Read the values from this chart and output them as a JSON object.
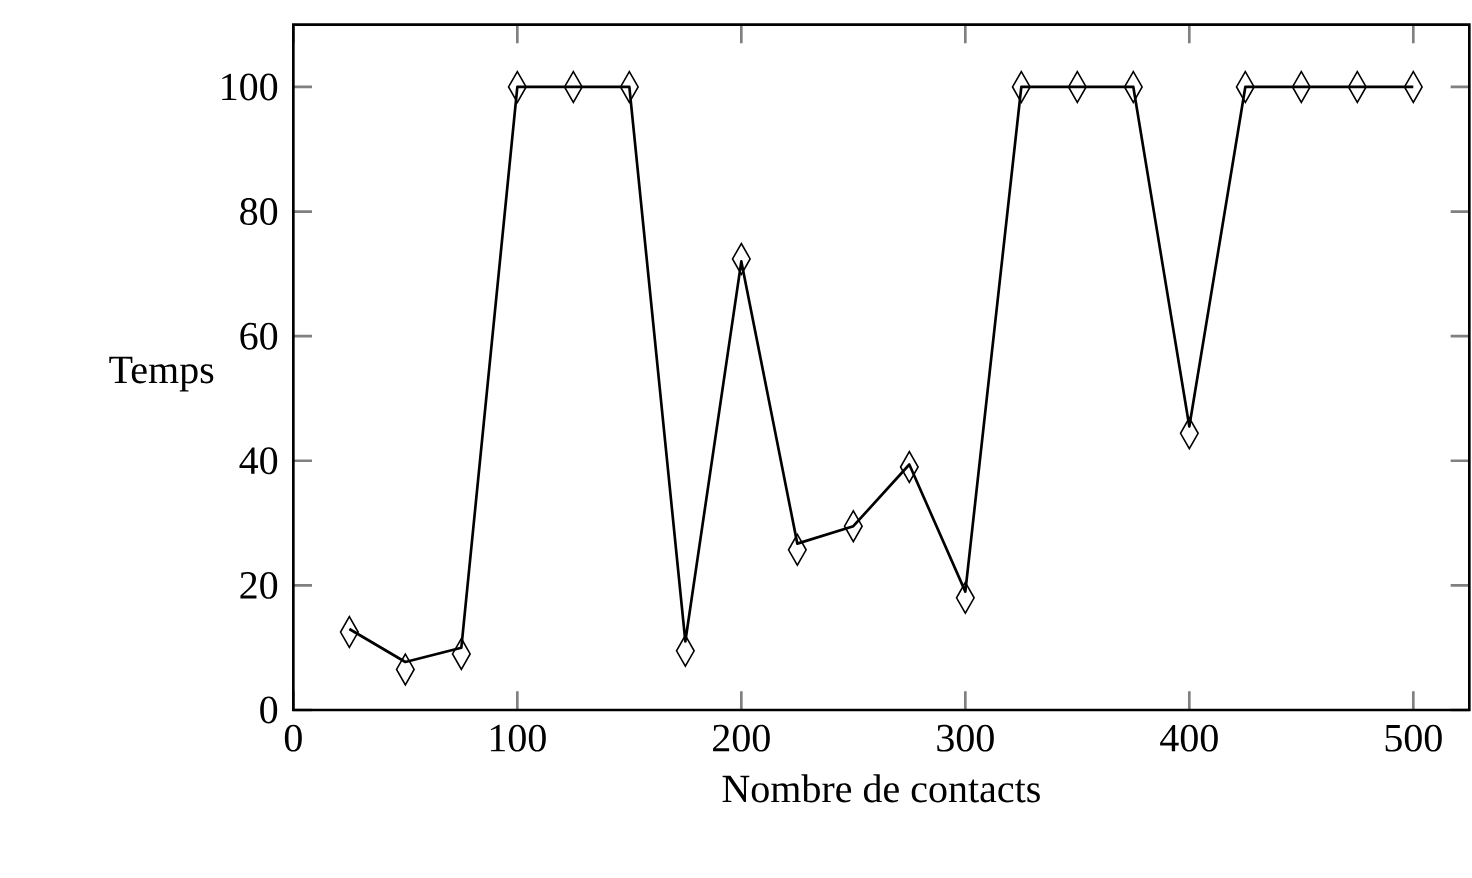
{
  "chart_data": {
    "type": "line",
    "xlabel": "Nombre de contacts",
    "ylabel": "Temps",
    "x": [
      25,
      50,
      75,
      100,
      125,
      150,
      175,
      200,
      225,
      250,
      275,
      300,
      325,
      350,
      375,
      400,
      425,
      450,
      475,
      500
    ],
    "series": [
      {
        "color": "#000000",
        "marker": "none",
        "line_style": "solid",
        "values": [
          13,
          7.7,
          10,
          100,
          100,
          100,
          11,
          72,
          26.7,
          29.5,
          39.4,
          19,
          100,
          100,
          100,
          45.5,
          100,
          100,
          100,
          100
        ]
      },
      {
        "type": "scatter",
        "color": "#000000",
        "marker": "diamond",
        "values": [
          12.5,
          6.5,
          9,
          100,
          100,
          100,
          9.5,
          72.4,
          25.7,
          29.5,
          39,
          18,
          100,
          100,
          100,
          44.4,
          100,
          100,
          100,
          100
        ]
      }
    ],
    "xlim": [
      0,
      525
    ],
    "ylim": [
      0,
      110
    ],
    "xticks": [
      0,
      100,
      200,
      300,
      400,
      500
    ],
    "yticks": [
      0,
      20,
      40,
      60,
      80,
      100
    ],
    "grid": false
  }
}
